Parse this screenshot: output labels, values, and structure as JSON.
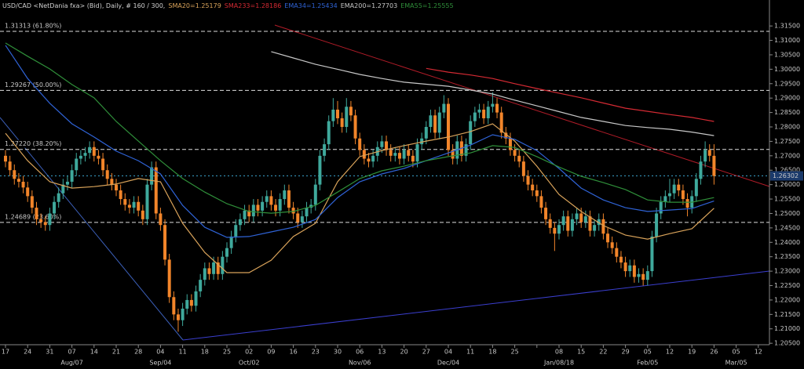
{
  "chart_data": {
    "type": "candlestick",
    "title": "USD/CAD <NetDania fxa> (Bid), Daily, # 160 / 300,",
    "up_color": "#3fa99c",
    "down_color": "#f2852a",
    "ylim": [
      1.2045,
      1.3202
    ],
    "yticks": [
      {
        "value": 1.205,
        "label": "1.20500"
      },
      {
        "value": 1.21,
        "label": "1.21000"
      },
      {
        "value": 1.215,
        "label": "1.21500"
      },
      {
        "value": 1.22,
        "label": "1.22000"
      },
      {
        "value": 1.225,
        "label": "1.22500"
      },
      {
        "value": 1.23,
        "label": "1.23000"
      },
      {
        "value": 1.235,
        "label": "1.23500"
      },
      {
        "value": 1.24,
        "label": "1.24000"
      },
      {
        "value": 1.245,
        "label": "1.24500"
      },
      {
        "value": 1.25,
        "label": "1.25000"
      },
      {
        "value": 1.255,
        "label": "1.25500"
      },
      {
        "value": 1.26,
        "label": "1.26000"
      },
      {
        "value": 1.265,
        "label": "1.26500"
      },
      {
        "value": 1.27,
        "label": "1.27000"
      },
      {
        "value": 1.275,
        "label": "1.27500"
      },
      {
        "value": 1.28,
        "label": "1.28000"
      },
      {
        "value": 1.285,
        "label": "1.28500"
      },
      {
        "value": 1.29,
        "label": "1.29000"
      },
      {
        "value": 1.295,
        "label": "1.29500"
      },
      {
        "value": 1.3,
        "label": "1.30000"
      },
      {
        "value": 1.305,
        "label": "1.30500"
      },
      {
        "value": 1.31,
        "label": "1.31000"
      },
      {
        "value": 1.315,
        "label": "1.31500"
      }
    ],
    "xtick_labels": [
      "17",
      "24",
      "31",
      "07",
      "14",
      "21",
      "28",
      "04",
      "11",
      "18",
      "25",
      "02",
      "09",
      "16",
      "23",
      "30",
      "06",
      "13",
      "20",
      "27",
      "04",
      "11",
      "18",
      "25",
      null,
      "08",
      "15",
      "22",
      "29",
      "05",
      "12",
      "19",
      "26",
      "05",
      "12"
    ],
    "xtick_months": [
      null,
      null,
      null,
      "Aug/07",
      null,
      null,
      null,
      "Sep/04",
      null,
      null,
      null,
      "Oct/02",
      null,
      null,
      null,
      null,
      "Nov/06",
      null,
      null,
      null,
      "Dec/04",
      null,
      null,
      null,
      null,
      "Jan/08/18",
      null,
      null,
      null,
      "Feb/05",
      null,
      null,
      null,
      "Mar/05",
      null
    ],
    "levels": [
      {
        "value": 1.31313,
        "label": "1.31313 (61.80%)"
      },
      {
        "value": 1.29267,
        "label": "1.29267 (50.00%)"
      },
      {
        "value": 1.2722,
        "label": "1.27220 (38.20%)"
      },
      {
        "value": 1.24689,
        "label": "1.24689 (23.60%)"
      }
    ],
    "last_price": 1.26302,
    "ohlc": [
      [
        1.27,
        1.272,
        1.266,
        1.268
      ],
      [
        1.268,
        1.27,
        1.263,
        1.265
      ],
      [
        1.265,
        1.267,
        1.26,
        1.262
      ],
      [
        1.262,
        1.264,
        1.259,
        1.261
      ],
      [
        1.261,
        1.263,
        1.257,
        1.259
      ],
      [
        1.259,
        1.261,
        1.254,
        1.256
      ],
      [
        1.256,
        1.258,
        1.25,
        1.252
      ],
      [
        1.252,
        1.254,
        1.246,
        1.248
      ],
      [
        1.248,
        1.25,
        1.245,
        1.247
      ],
      [
        1.247,
        1.249,
        1.244,
        1.246
      ],
      [
        1.246,
        1.252,
        1.244,
        1.25
      ],
      [
        1.25,
        1.256,
        1.248,
        1.254
      ],
      [
        1.254,
        1.259,
        1.252,
        1.257
      ],
      [
        1.257,
        1.262,
        1.255,
        1.26
      ],
      [
        1.26,
        1.263,
        1.258,
        1.261
      ],
      [
        1.261,
        1.267,
        1.259,
        1.265
      ],
      [
        1.265,
        1.271,
        1.263,
        1.269
      ],
      [
        1.269,
        1.272,
        1.267,
        1.27
      ],
      [
        1.27,
        1.273,
        1.268,
        1.271
      ],
      [
        1.271,
        1.275,
        1.269,
        1.273
      ],
      [
        1.273,
        1.275,
        1.268,
        1.27
      ],
      [
        1.27,
        1.272,
        1.267,
        1.269
      ],
      [
        1.269,
        1.271,
        1.263,
        1.265
      ],
      [
        1.265,
        1.267,
        1.26,
        1.262
      ],
      [
        1.262,
        1.264,
        1.258,
        1.26
      ],
      [
        1.26,
        1.262,
        1.256,
        1.258
      ],
      [
        1.258,
        1.26,
        1.253,
        1.255
      ],
      [
        1.255,
        1.257,
        1.251,
        1.253
      ],
      [
        1.253,
        1.255,
        1.25,
        1.252
      ],
      [
        1.252,
        1.256,
        1.25,
        1.254
      ],
      [
        1.254,
        1.256,
        1.249,
        1.251
      ],
      [
        1.251,
        1.253,
        1.246,
        1.248
      ],
      [
        1.248,
        1.262,
        1.246,
        1.26
      ],
      [
        1.26,
        1.268,
        1.258,
        1.266
      ],
      [
        1.266,
        1.268,
        1.248,
        1.25
      ],
      [
        1.25,
        1.252,
        1.244,
        1.246
      ],
      [
        1.246,
        1.248,
        1.232,
        1.234
      ],
      [
        1.234,
        1.236,
        1.219,
        1.221
      ],
      [
        1.221,
        1.223,
        1.213,
        1.215
      ],
      [
        1.215,
        1.217,
        1.209,
        1.213
      ],
      [
        1.213,
        1.219,
        1.211,
        1.217
      ],
      [
        1.217,
        1.222,
        1.215,
        1.22
      ],
      [
        1.22,
        1.222,
        1.216,
        1.218
      ],
      [
        1.218,
        1.225,
        1.216,
        1.223
      ],
      [
        1.223,
        1.229,
        1.221,
        1.227
      ],
      [
        1.227,
        1.233,
        1.225,
        1.231
      ],
      [
        1.231,
        1.233,
        1.227,
        1.229
      ],
      [
        1.229,
        1.235,
        1.227,
        1.233
      ],
      [
        1.233,
        1.235,
        1.227,
        1.229
      ],
      [
        1.229,
        1.237,
        1.227,
        1.235
      ],
      [
        1.235,
        1.24,
        1.233,
        1.238
      ],
      [
        1.238,
        1.244,
        1.236,
        1.242
      ],
      [
        1.242,
        1.248,
        1.24,
        1.246
      ],
      [
        1.246,
        1.25,
        1.244,
        1.248
      ],
      [
        1.248,
        1.253,
        1.246,
        1.251
      ],
      [
        1.251,
        1.253,
        1.247,
        1.249
      ],
      [
        1.249,
        1.255,
        1.247,
        1.253
      ],
      [
        1.253,
        1.255,
        1.249,
        1.251
      ],
      [
        1.251,
        1.256,
        1.249,
        1.254
      ],
      [
        1.254,
        1.258,
        1.252,
        1.256
      ],
      [
        1.256,
        1.258,
        1.251,
        1.253
      ],
      [
        1.253,
        1.255,
        1.249,
        1.251
      ],
      [
        1.251,
        1.257,
        1.249,
        1.255
      ],
      [
        1.255,
        1.26,
        1.253,
        1.258
      ],
      [
        1.258,
        1.26,
        1.25,
        1.252
      ],
      [
        1.252,
        1.254,
        1.248,
        1.25
      ],
      [
        1.25,
        1.252,
        1.245,
        1.247
      ],
      [
        1.247,
        1.251,
        1.245,
        1.249
      ],
      [
        1.249,
        1.254,
        1.247,
        1.252
      ],
      [
        1.252,
        1.255,
        1.25,
        1.253
      ],
      [
        1.253,
        1.262,
        1.251,
        1.26
      ],
      [
        1.26,
        1.272,
        1.258,
        1.27
      ],
      [
        1.27,
        1.276,
        1.268,
        1.274
      ],
      [
        1.274,
        1.284,
        1.272,
        1.282
      ],
      [
        1.282,
        1.29,
        1.28,
        1.286
      ],
      [
        1.286,
        1.289,
        1.281,
        1.283
      ],
      [
        1.283,
        1.285,
        1.278,
        1.28
      ],
      [
        1.28,
        1.29,
        1.278,
        1.287
      ],
      [
        1.287,
        1.289,
        1.282,
        1.284
      ],
      [
        1.284,
        1.286,
        1.274,
        1.276
      ],
      [
        1.276,
        1.278,
        1.27,
        1.272
      ],
      [
        1.272,
        1.274,
        1.267,
        1.269
      ],
      [
        1.269,
        1.271,
        1.266,
        1.268
      ],
      [
        1.268,
        1.272,
        1.266,
        1.27
      ],
      [
        1.27,
        1.275,
        1.268,
        1.273
      ],
      [
        1.273,
        1.277,
        1.271,
        1.275
      ],
      [
        1.275,
        1.277,
        1.27,
        1.272
      ],
      [
        1.272,
        1.274,
        1.268,
        1.27
      ],
      [
        1.27,
        1.273,
        1.268,
        1.271
      ],
      [
        1.271,
        1.273,
        1.267,
        1.269
      ],
      [
        1.269,
        1.274,
        1.267,
        1.272
      ],
      [
        1.272,
        1.274,
        1.268,
        1.27
      ],
      [
        1.27,
        1.272,
        1.266,
        1.268
      ],
      [
        1.268,
        1.276,
        1.266,
        1.274
      ],
      [
        1.274,
        1.278,
        1.272,
        1.276
      ],
      [
        1.276,
        1.282,
        1.274,
        1.28
      ],
      [
        1.28,
        1.286,
        1.278,
        1.284
      ],
      [
        1.284,
        1.286,
        1.276,
        1.278
      ],
      [
        1.278,
        1.287,
        1.276,
        1.285
      ],
      [
        1.285,
        1.291,
        1.283,
        1.288
      ],
      [
        1.288,
        1.29,
        1.27,
        1.272
      ],
      [
        1.272,
        1.274,
        1.267,
        1.269
      ],
      [
        1.269,
        1.277,
        1.267,
        1.275
      ],
      [
        1.275,
        1.277,
        1.268,
        1.27
      ],
      [
        1.27,
        1.276,
        1.268,
        1.274
      ],
      [
        1.274,
        1.284,
        1.272,
        1.282
      ],
      [
        1.282,
        1.287,
        1.28,
        1.285
      ],
      [
        1.285,
        1.288,
        1.283,
        1.286
      ],
      [
        1.286,
        1.288,
        1.281,
        1.283
      ],
      [
        1.283,
        1.289,
        1.281,
        1.287
      ],
      [
        1.287,
        1.292,
        1.285,
        1.288
      ],
      [
        1.288,
        1.29,
        1.283,
        1.285
      ],
      [
        1.285,
        1.287,
        1.276,
        1.278
      ],
      [
        1.278,
        1.28,
        1.274,
        1.276
      ],
      [
        1.276,
        1.278,
        1.27,
        1.272
      ],
      [
        1.272,
        1.274,
        1.268,
        1.27
      ],
      [
        1.27,
        1.272,
        1.266,
        1.268
      ],
      [
        1.268,
        1.27,
        1.261,
        1.263
      ],
      [
        1.263,
        1.265,
        1.258,
        1.26
      ],
      [
        1.26,
        1.262,
        1.256,
        1.258
      ],
      [
        1.258,
        1.26,
        1.254,
        1.256
      ],
      [
        1.256,
        1.258,
        1.25,
        1.252
      ],
      [
        1.252,
        1.254,
        1.246,
        1.248
      ],
      [
        1.248,
        1.25,
        1.243,
        1.245
      ],
      [
        1.245,
        1.247,
        1.237,
        1.243
      ],
      [
        1.243,
        1.248,
        1.241,
        1.246
      ],
      [
        1.246,
        1.251,
        1.244,
        1.249
      ],
      [
        1.249,
        1.251,
        1.242,
        1.244
      ],
      [
        1.244,
        1.25,
        1.242,
        1.248
      ],
      [
        1.248,
        1.252,
        1.246,
        1.25
      ],
      [
        1.25,
        1.252,
        1.245,
        1.247
      ],
      [
        1.247,
        1.251,
        1.245,
        1.249
      ],
      [
        1.249,
        1.251,
        1.242,
        1.244
      ],
      [
        1.244,
        1.248,
        1.242,
        1.246
      ],
      [
        1.246,
        1.25,
        1.244,
        1.248
      ],
      [
        1.248,
        1.25,
        1.241,
        1.243
      ],
      [
        1.243,
        1.245,
        1.238,
        1.24
      ],
      [
        1.24,
        1.242,
        1.236,
        1.238
      ],
      [
        1.238,
        1.24,
        1.233,
        1.235
      ],
      [
        1.235,
        1.237,
        1.231,
        1.233
      ],
      [
        1.233,
        1.235,
        1.228,
        1.23
      ],
      [
        1.23,
        1.234,
        1.228,
        1.232
      ],
      [
        1.232,
        1.234,
        1.226,
        1.228
      ],
      [
        1.228,
        1.231,
        1.226,
        1.229
      ],
      [
        1.229,
        1.231,
        1.225,
        1.227
      ],
      [
        1.227,
        1.232,
        1.225,
        1.23
      ],
      [
        1.23,
        1.244,
        1.228,
        1.242
      ],
      [
        1.242,
        1.252,
        1.24,
        1.25
      ],
      [
        1.25,
        1.256,
        1.248,
        1.254
      ],
      [
        1.254,
        1.258,
        1.252,
        1.256
      ],
      [
        1.256,
        1.262,
        1.254,
        1.257
      ],
      [
        1.257,
        1.262,
        1.255,
        1.26
      ],
      [
        1.26,
        1.262,
        1.256,
        1.258
      ],
      [
        1.258,
        1.26,
        1.253,
        1.255
      ],
      [
        1.255,
        1.257,
        1.249,
        1.252
      ],
      [
        1.252,
        1.258,
        1.25,
        1.256
      ],
      [
        1.256,
        1.264,
        1.254,
        1.262
      ],
      [
        1.262,
        1.27,
        1.26,
        1.268
      ],
      [
        1.268,
        1.275,
        1.266,
        1.272
      ],
      [
        1.272,
        1.274,
        1.268,
        1.27
      ],
      [
        1.27,
        1.274,
        1.26,
        1.263
      ]
    ],
    "series": [
      {
        "name": "SMA20=1.25179",
        "color": "#d9a35a",
        "values": [
          1.2778,
          1.2683,
          1.261,
          1.2588,
          1.2593,
          1.2602,
          1.2621,
          1.261,
          1.2466,
          1.2365,
          1.2295,
          1.2295,
          1.2338,
          1.242,
          1.2466,
          1.261,
          1.2697,
          1.2718,
          1.2735,
          1.2751,
          1.2765,
          1.2784,
          1.2811,
          1.2751,
          1.2664,
          1.2566,
          1.2507,
          1.2458,
          1.2425,
          1.2411,
          1.243,
          1.2447,
          1.2518,
          null,
          null
        ]
      },
      {
        "name": "SMA233=1.28186",
        "color": "#d42a33",
        "values": [
          null,
          null,
          null,
          null,
          null,
          null,
          null,
          null,
          null,
          null,
          null,
          null,
          null,
          null,
          null,
          null,
          null,
          null,
          null,
          1.3003,
          1.299,
          1.298,
          1.2968,
          1.295,
          1.2933,
          1.2917,
          1.2901,
          1.2883,
          1.2865,
          1.2854,
          1.2843,
          1.2833,
          1.2819,
          null,
          null
        ]
      },
      {
        "name": "EMA34=1.25434",
        "color": "#2f63d6",
        "values": [
          1.3083,
          1.2968,
          1.2882,
          1.2811,
          1.2765,
          1.2716,
          1.2683,
          1.2637,
          1.2528,
          1.2452,
          1.2417,
          1.242,
          1.2436,
          1.2452,
          1.2479,
          1.2555,
          1.261,
          1.2637,
          1.2656,
          1.2683,
          1.271,
          1.2737,
          1.2773,
          1.2757,
          1.2718,
          1.2656,
          1.2588,
          1.2547,
          1.252,
          1.2507,
          1.2512,
          1.2517,
          1.2543,
          null,
          null
        ]
      },
      {
        "name": "EMA200=1.27703",
        "color": "#c8c8c8",
        "values": [
          null,
          null,
          null,
          null,
          null,
          null,
          null,
          null,
          null,
          null,
          null,
          null,
          1.3061,
          1.3039,
          1.3017,
          1.3,
          1.2982,
          1.2968,
          1.2955,
          1.2948,
          1.2941,
          1.2928,
          1.2914,
          1.2893,
          1.2873,
          1.2853,
          1.2833,
          1.2819,
          1.2805,
          1.2798,
          1.2792,
          1.2782,
          1.277,
          null,
          null
        ]
      },
      {
        "name": "EMA55=1.25555",
        "color": "#2f8f3a",
        "values": [
          1.3091,
          1.3045,
          1.3001,
          1.2947,
          1.2901,
          1.2819,
          1.2751,
          1.2683,
          1.2621,
          1.2574,
          1.2534,
          1.2507,
          1.2501,
          1.2507,
          1.2528,
          1.2574,
          1.2621,
          1.2648,
          1.2664,
          1.2683,
          1.2697,
          1.271,
          1.2735,
          1.2729,
          1.2697,
          1.2661,
          1.2629,
          1.2607,
          1.2583,
          1.2547,
          1.2539,
          1.2539,
          1.2555,
          null,
          null
        ]
      }
    ]
  }
}
